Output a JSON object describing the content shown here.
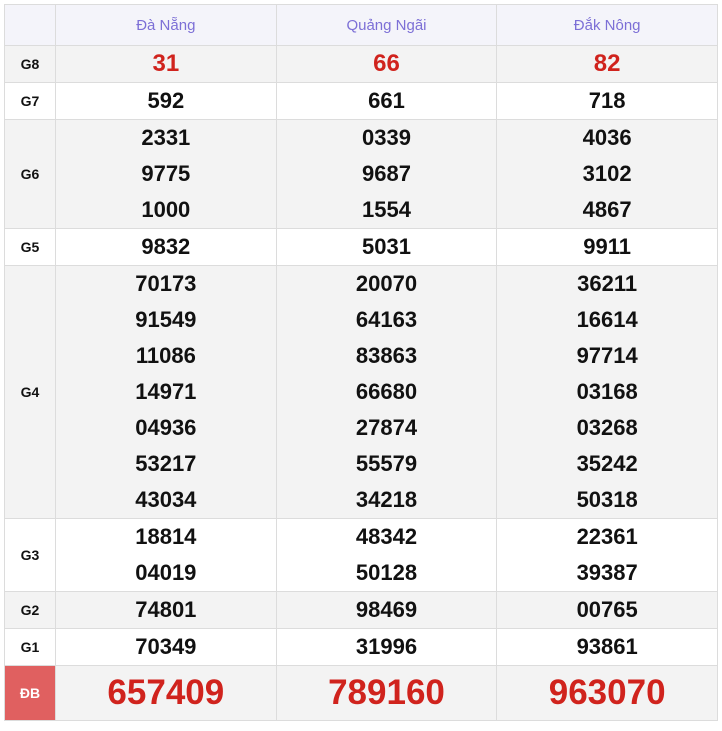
{
  "columns": [
    "Đà Nẵng",
    "Quảng Ngãi",
    "Đắk Nông"
  ],
  "rows": [
    {
      "label": "G8",
      "values": [
        [
          "31"
        ],
        [
          "66"
        ],
        [
          "82"
        ]
      ],
      "style": "red"
    },
    {
      "label": "G7",
      "values": [
        [
          "592"
        ],
        [
          "661"
        ],
        [
          "718"
        ]
      ]
    },
    {
      "label": "G6",
      "values": [
        [
          "2331",
          "9775",
          "1000"
        ],
        [
          "0339",
          "9687",
          "1554"
        ],
        [
          "4036",
          "3102",
          "4867"
        ]
      ]
    },
    {
      "label": "G5",
      "values": [
        [
          "9832"
        ],
        [
          "5031"
        ],
        [
          "9911"
        ]
      ]
    },
    {
      "label": "G4",
      "values": [
        [
          "70173",
          "91549",
          "11086",
          "14971",
          "04936",
          "53217",
          "43034"
        ],
        [
          "20070",
          "64163",
          "83863",
          "66680",
          "27874",
          "55579",
          "34218"
        ],
        [
          "36211",
          "16614",
          "97714",
          "03168",
          "03268",
          "35242",
          "50318"
        ]
      ]
    },
    {
      "label": "G3",
      "values": [
        [
          "18814",
          "04019"
        ],
        [
          "48342",
          "50128"
        ],
        [
          "22361",
          "39387"
        ]
      ]
    },
    {
      "label": "G2",
      "values": [
        [
          "74801"
        ],
        [
          "98469"
        ],
        [
          "00765"
        ]
      ]
    },
    {
      "label": "G1",
      "values": [
        [
          "70349"
        ],
        [
          "31996"
        ],
        [
          "93861"
        ]
      ]
    },
    {
      "label": "ĐB",
      "values": [
        [
          "657409"
        ],
        [
          "789160"
        ],
        [
          "963070"
        ]
      ],
      "style": "big"
    }
  ],
  "colors": {
    "header_text": "#7c6fd6",
    "prize_red": "#d0231d",
    "special_label_bg": "#e06060"
  }
}
